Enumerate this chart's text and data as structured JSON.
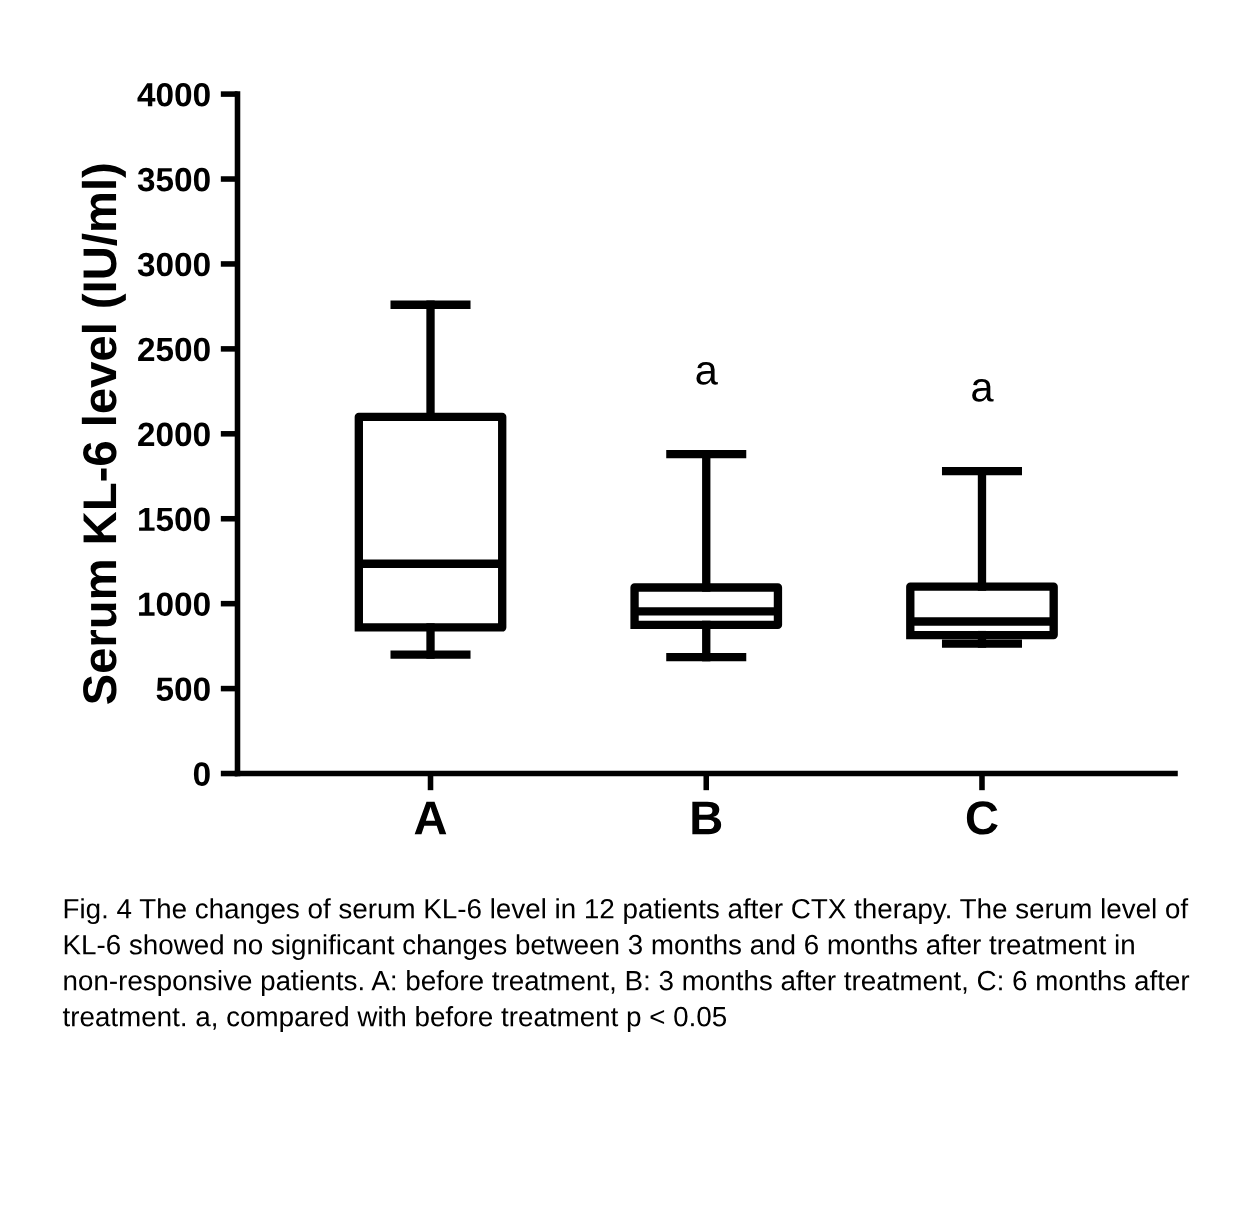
{
  "chart_data": {
    "type": "box",
    "ylabel": "Serum KL-6 level (IU/ml)",
    "categories": [
      "A",
      "B",
      "C"
    ],
    "boxes": [
      {
        "low": 700,
        "q1": 860,
        "median": 1235,
        "q3": 2100,
        "high": 2760
      },
      {
        "low": 685,
        "q1": 875,
        "median": 955,
        "q3": 1095,
        "high": 1880
      },
      {
        "low": 765,
        "q1": 815,
        "median": 895,
        "q3": 1100,
        "high": 1780
      }
    ],
    "ylim": [
      0,
      4000
    ],
    "yticks": [
      0,
      500,
      1000,
      1500,
      2000,
      2500,
      3000,
      3500,
      4000
    ],
    "grid": false,
    "annotations": [
      "a",
      "a",
      "Fig. 4 The changes of serum KL-6 level in 12 patients after CTX therapy. The serum level of KL-6 showed no significant changes between 3 months and 6 months after treatment in non-responsive patients. A: before treatment, B: 3 months after treatment, C: 6 months after treatment. a, compared with before treatment p < 0.05"
    ]
  }
}
